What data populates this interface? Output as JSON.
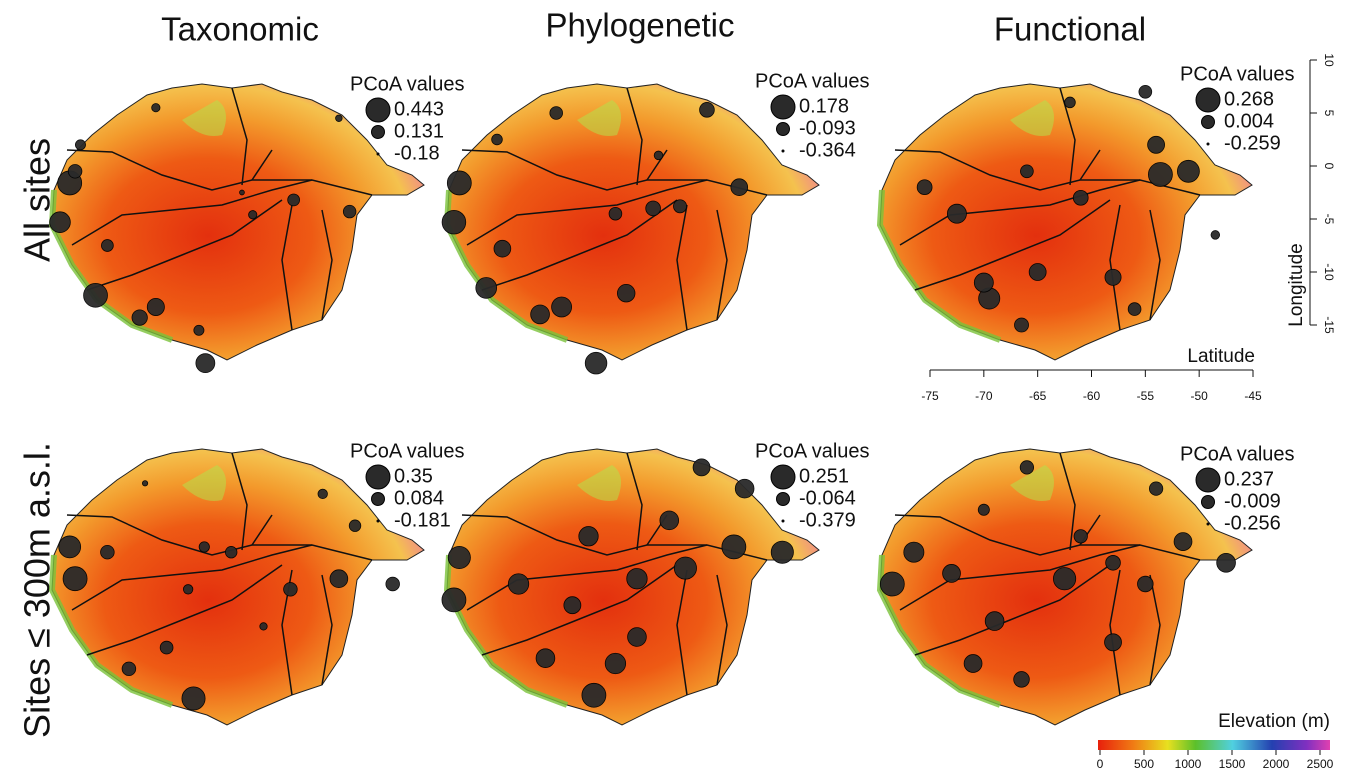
{
  "columns": [
    "Taxonomic",
    "Phylogenetic",
    "Functional"
  ],
  "rows": [
    "All sites",
    "Sites ≤ 300m a.s.l."
  ],
  "legend_title": "PCoA values",
  "panels": [
    {
      "legend": [
        0.443,
        0.131,
        -0.18
      ],
      "sites": [
        [
          -78.0,
          -1.6,
          0.443
        ],
        [
          -78.9,
          -5.3,
          0.35
        ],
        [
          -75.6,
          -12.2,
          0.44
        ],
        [
          -65.4,
          -18.6,
          0.3
        ],
        [
          -71.5,
          -14.3,
          0.2
        ],
        [
          -77.5,
          -0.5,
          0.15
        ],
        [
          -74.5,
          -7.5,
          0.1
        ],
        [
          -70.0,
          -13.3,
          0.25
        ],
        [
          -66.0,
          -15.5,
          0.05
        ],
        [
          -61.0,
          -4.6,
          0.0
        ],
        [
          -57.2,
          -3.2,
          0.1
        ],
        [
          -52.0,
          -4.3,
          0.12
        ],
        [
          -70.0,
          5.5,
          0.0
        ],
        [
          -53.0,
          4.5,
          -0.05
        ],
        [
          -77.0,
          2.0,
          0.05
        ],
        [
          -62.0,
          -2.5,
          -0.1
        ]
      ]
    },
    {
      "legend": [
        0.178,
        -0.093,
        -0.364
      ],
      "sites": [
        [
          -78.5,
          -1.6,
          0.178
        ],
        [
          -79.0,
          -5.3,
          0.17
        ],
        [
          -76.0,
          -11.5,
          0.1
        ],
        [
          -65.8,
          -18.6,
          0.12
        ],
        [
          -71.0,
          -14.0,
          0.05
        ],
        [
          -74.5,
          -7.8,
          0.0
        ],
        [
          -63.0,
          -12.0,
          0.02
        ],
        [
          -69.0,
          -13.3,
          0.08
        ],
        [
          -64.0,
          -4.5,
          -0.1
        ],
        [
          -60.5,
          -4.0,
          -0.05
        ],
        [
          -58.0,
          -3.8,
          -0.09
        ],
        [
          -52.5,
          -2.0,
          0.0
        ],
        [
          -69.5,
          5.0,
          -0.1
        ],
        [
          -55.5,
          5.3,
          -0.05
        ],
        [
          -60.0,
          1.0,
          -0.2
        ],
        [
          -75.0,
          2.5,
          -0.15
        ]
      ]
    },
    {
      "legend": [
        0.268,
        0.004,
        -0.259
      ],
      "sites": [
        [
          -53.6,
          -0.8,
          0.268
        ],
        [
          -51.0,
          -0.5,
          0.22
        ],
        [
          -54.0,
          2.0,
          0.1
        ],
        [
          -72.5,
          -4.5,
          0.15
        ],
        [
          -69.5,
          -12.5,
          0.2
        ],
        [
          -70.0,
          -11.0,
          0.15
        ],
        [
          -65.0,
          -10.0,
          0.1
        ],
        [
          -61.0,
          -3.0,
          0.05
        ],
        [
          -58.0,
          -10.5,
          0.08
        ],
        [
          -66.0,
          -0.5,
          0.0
        ],
        [
          -75.5,
          -2.0,
          0.05
        ],
        [
          -55.0,
          7.0,
          0.0
        ],
        [
          -62.0,
          6.0,
          -0.05
        ],
        [
          -48.5,
          -6.5,
          -0.1
        ],
        [
          -56.0,
          -13.5,
          0.0
        ],
        [
          -66.5,
          -15.0,
          0.03
        ]
      ]
    },
    {
      "legend": [
        0.35,
        0.084,
        -0.181
      ],
      "sites": [
        [
          -78.0,
          -1.5,
          0.3
        ],
        [
          -77.5,
          -4.5,
          0.35
        ],
        [
          -74.5,
          -2.0,
          0.1
        ],
        [
          -66.5,
          -15.8,
          0.33
        ],
        [
          -72.5,
          -13.0,
          0.1
        ],
        [
          -69.0,
          -11.0,
          0.08
        ],
        [
          -67.0,
          -5.5,
          0.0
        ],
        [
          -63.0,
          -2.0,
          0.05
        ],
        [
          -57.5,
          -5.5,
          0.1
        ],
        [
          -53.0,
          -4.5,
          0.2
        ],
        [
          -51.5,
          0.5,
          0.05
        ],
        [
          -54.5,
          3.5,
          0.0
        ],
        [
          -60.0,
          -9.0,
          -0.05
        ],
        [
          -48.0,
          -5.0,
          0.1
        ],
        [
          -71.0,
          4.5,
          -0.1
        ],
        [
          -65.5,
          -1.5,
          0.02
        ]
      ]
    },
    {
      "legend": [
        0.251,
        -0.064,
        -0.379
      ],
      "sites": [
        [
          -78.5,
          -2.5,
          0.2
        ],
        [
          -79.0,
          -6.5,
          0.25
        ],
        [
          -73.0,
          -5.0,
          0.15
        ],
        [
          -66.0,
          -15.5,
          0.25
        ],
        [
          -70.5,
          -12.0,
          0.1
        ],
        [
          -64.0,
          -12.5,
          0.15
        ],
        [
          -68.0,
          -7.0,
          0.05
        ],
        [
          -62.0,
          -4.5,
          0.15
        ],
        [
          -57.5,
          -3.5,
          0.2
        ],
        [
          -53.0,
          -1.5,
          0.25
        ],
        [
          -48.5,
          -2.0,
          0.2
        ],
        [
          -52.0,
          4.0,
          0.1
        ],
        [
          -59.0,
          1.0,
          0.1
        ],
        [
          -62.0,
          -10.0,
          0.1
        ],
        [
          -56.0,
          6.0,
          0.05
        ],
        [
          -66.5,
          -0.5,
          0.12
        ]
      ]
    },
    {
      "legend": [
        0.237,
        -0.009,
        -0.256
      ],
      "sites": [
        [
          -78.5,
          -5.0,
          0.237
        ],
        [
          -76.5,
          -2.0,
          0.15
        ],
        [
          -73.0,
          -4.0,
          0.1
        ],
        [
          -69.0,
          -8.5,
          0.12
        ],
        [
          -62.5,
          -4.5,
          0.2
        ],
        [
          -71.0,
          -12.5,
          0.1
        ],
        [
          -66.5,
          -14.0,
          0.05
        ],
        [
          -58.0,
          -10.5,
          0.08
        ],
        [
          -55.0,
          -5.0,
          0.05
        ],
        [
          -51.5,
          -1.0,
          0.1
        ],
        [
          -47.5,
          -3.0,
          0.12
        ],
        [
          -54.0,
          4.0,
          0.0
        ],
        [
          -61.0,
          -0.5,
          0.0
        ],
        [
          -70.0,
          2.0,
          -0.05
        ],
        [
          -66.0,
          6.0,
          0.0
        ],
        [
          -58.0,
          -3.0,
          0.03
        ]
      ]
    }
  ],
  "axes": {
    "x_label": "Latitude",
    "xlim": [
      -75,
      -45
    ],
    "xticks": [
      -75,
      -70,
      -65,
      -60,
      -55,
      -50,
      -45
    ],
    "y_label": "Longitude",
    "ylim": [
      -15,
      10
    ],
    "yticks": [
      -15,
      -10,
      -5,
      0,
      5,
      10
    ]
  },
  "colorbar": {
    "title": "Elevation (m)",
    "lim": [
      0,
      2500
    ],
    "ticks": [
      0,
      500,
      1000,
      1500,
      2000,
      2500
    ]
  }
}
